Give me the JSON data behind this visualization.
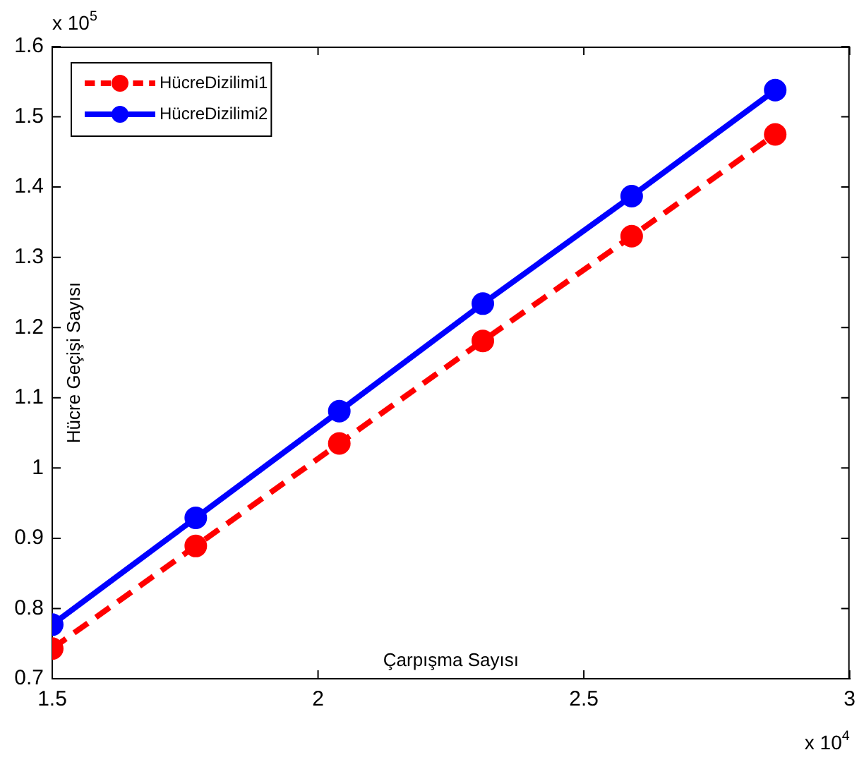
{
  "chart_data": {
    "type": "line",
    "xlabel": "Çarpışma Sayısı",
    "ylabel": "Hücre Geçişi Sayısı",
    "x": [
      1.5,
      1.77,
      2.04,
      2.31,
      2.59,
      2.86
    ],
    "series": [
      {
        "name": "HücreDizilimi1",
        "color": "#ff0000",
        "line_style": "dashed",
        "values": [
          0.743,
          0.889,
          1.035,
          1.181,
          1.33,
          1.475
        ]
      },
      {
        "name": "HücreDizilimi2",
        "color": "#0000ff",
        "line_style": "solid",
        "values": [
          0.777,
          0.929,
          1.081,
          1.234,
          1.387,
          1.538
        ]
      }
    ],
    "marker": "circle",
    "grid": false,
    "legend": "top left",
    "xlim": [
      1.5,
      3
    ],
    "xticks": [
      1.5,
      2,
      2.5,
      3
    ],
    "ylim": [
      0.7,
      1.6
    ],
    "yticks": [
      0.7,
      0.8,
      0.9,
      1,
      1.1,
      1.2,
      1.3,
      1.4,
      1.5,
      1.6
    ],
    "annotations": [
      "x 10$^{5}$",
      "x 10$^{4}$"
    ]
  }
}
